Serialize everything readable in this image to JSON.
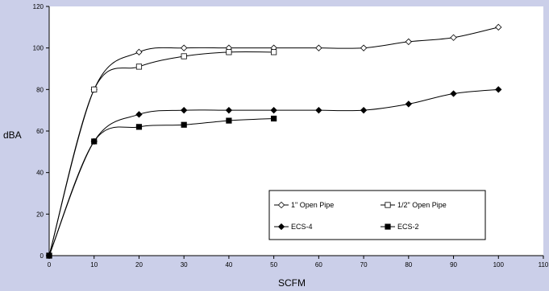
{
  "chart_data": {
    "type": "line",
    "xlabel": "SCFM",
    "ylabel": "dBA",
    "xlim": [
      0,
      110
    ],
    "ylim": [
      0,
      120
    ],
    "x_ticks": [
      0,
      10,
      20,
      30,
      40,
      50,
      60,
      70,
      80,
      90,
      100,
      110
    ],
    "y_ticks": [
      0,
      20,
      40,
      60,
      80,
      100,
      120
    ],
    "grid": false,
    "legend_position": "bottom-right",
    "colors": {
      "background": "#cbcfe9",
      "plot_area": "#ffffff",
      "series_line": "#000000"
    },
    "series": [
      {
        "name": "1\" Open Pipe",
        "marker": "diamond-open",
        "x": [
          0,
          10,
          20,
          30,
          40,
          50,
          60,
          70,
          80,
          90,
          100
        ],
        "y": [
          0,
          80,
          98,
          100,
          100,
          100,
          100,
          100,
          103,
          105,
          110
        ]
      },
      {
        "name": "1/2\" Open Pipe",
        "marker": "square-open",
        "x": [
          0,
          10,
          20,
          30,
          40,
          50
        ],
        "y": [
          0,
          80,
          91,
          96,
          98,
          98
        ]
      },
      {
        "name": "ECS-4",
        "marker": "diamond-filled",
        "x": [
          0,
          10,
          20,
          30,
          40,
          50,
          60,
          70,
          80,
          90,
          100
        ],
        "y": [
          0,
          55,
          68,
          70,
          70,
          70,
          70,
          70,
          73,
          78,
          80
        ]
      },
      {
        "name": "ECS-2",
        "marker": "square-filled",
        "x": [
          0,
          10,
          20,
          30,
          40,
          50
        ],
        "y": [
          0,
          55,
          62,
          63,
          65,
          66
        ]
      }
    ]
  }
}
